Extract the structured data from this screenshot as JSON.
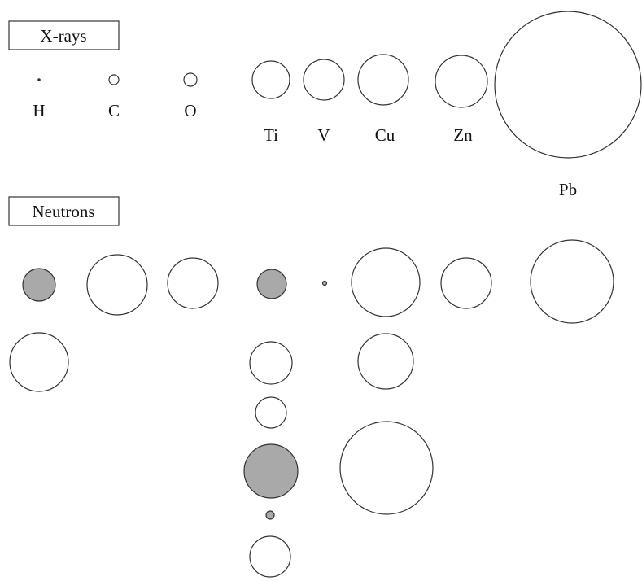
{
  "sections": {
    "xrays_title": "X-rays",
    "neutrons_title": "Neutrons"
  },
  "element_labels": {
    "H": "H",
    "C": "C",
    "O": "O",
    "Ti": "Ti",
    "V": "V",
    "Cu": "Cu",
    "Zn": "Zn",
    "Pb": "Pb"
  },
  "colors": {
    "outline": "#333333",
    "negative_fill": "#a9a9a9",
    "positive_fill": "#ffffff",
    "box_border": "#333333"
  }
}
